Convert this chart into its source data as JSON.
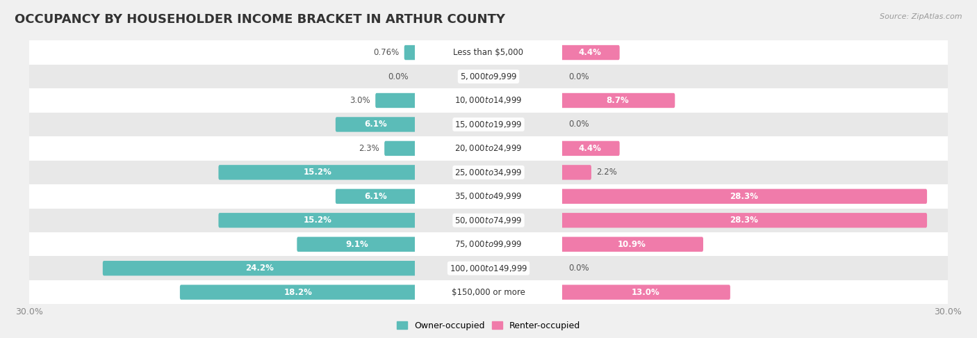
{
  "title": "OCCUPANCY BY HOUSEHOLDER INCOME BRACKET IN ARTHUR COUNTY",
  "source": "Source: ZipAtlas.com",
  "categories": [
    "Less than $5,000",
    "$5,000 to $9,999",
    "$10,000 to $14,999",
    "$15,000 to $19,999",
    "$20,000 to $24,999",
    "$25,000 to $34,999",
    "$35,000 to $49,999",
    "$50,000 to $74,999",
    "$75,000 to $99,999",
    "$100,000 to $149,999",
    "$150,000 or more"
  ],
  "owner_values": [
    0.76,
    0.0,
    3.0,
    6.1,
    2.3,
    15.2,
    6.1,
    15.2,
    9.1,
    24.2,
    18.2
  ],
  "renter_values": [
    4.4,
    0.0,
    8.7,
    0.0,
    4.4,
    2.2,
    28.3,
    28.3,
    10.9,
    0.0,
    13.0
  ],
  "owner_color": "#5bbcb8",
  "renter_color": "#f07baa",
  "owner_label": "Owner-occupied",
  "renter_label": "Renter-occupied",
  "xlim": 30.0,
  "bar_height": 0.62,
  "background_color": "#f0f0f0",
  "row_bg_light": "#ffffff",
  "row_bg_dark": "#e8e8e8",
  "title_fontsize": 13,
  "label_fontsize": 8.5,
  "axis_fontsize": 9,
  "category_fontsize": 8.5,
  "value_label_color_dark": "#555555",
  "value_label_color_white": "#ffffff"
}
